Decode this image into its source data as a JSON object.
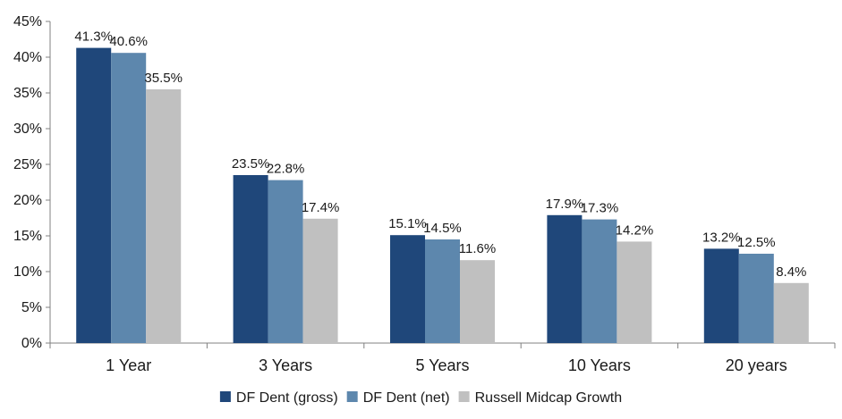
{
  "chart_data": {
    "type": "bar",
    "title": "",
    "xlabel": "",
    "ylabel": "",
    "categories": [
      "1 Year",
      "3 Years",
      "5 Years",
      "10 Years",
      "20 years"
    ],
    "series": [
      {
        "name": "DF Dent (gross)",
        "color": "#1f477a",
        "values": [
          41.3,
          23.5,
          15.1,
          17.9,
          13.2
        ],
        "labels": [
          "41.3%",
          "23.5%",
          "15.1%",
          "17.9%",
          "13.2%"
        ]
      },
      {
        "name": "DF Dent (net)",
        "color": "#5d87ad",
        "values": [
          40.6,
          22.8,
          14.5,
          17.3,
          12.5
        ],
        "labels": [
          "40.6%",
          "22.8%",
          "14.5%",
          "17.3%",
          "12.5%"
        ]
      },
      {
        "name": "Russell Midcap Growth",
        "color": "#c0c0c0",
        "values": [
          35.5,
          17.4,
          11.6,
          14.2,
          8.4
        ],
        "labels": [
          "35.5%",
          "17.4%",
          "11.6%",
          "14.2%",
          "8.4%"
        ]
      }
    ],
    "ylim": [
      0,
      45
    ],
    "yticks": [
      0,
      5,
      10,
      15,
      20,
      25,
      30,
      35,
      40,
      45
    ],
    "ytick_labels": [
      "0%",
      "5%",
      "10%",
      "15%",
      "20%",
      "25%",
      "30%",
      "35%",
      "40%",
      "45%"
    ],
    "grid": false,
    "legend_position": "bottom"
  }
}
